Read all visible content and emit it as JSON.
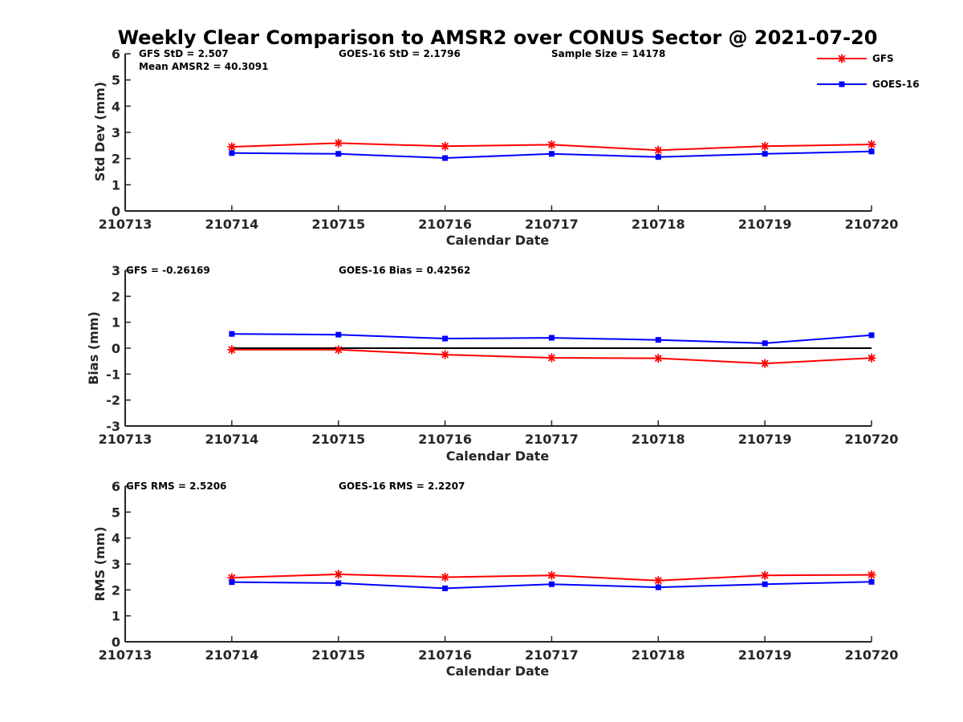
{
  "chart_data": {
    "title": "Weekly Clear Comparison to AMSR2 over CONUS Sector @ 2021-07-20",
    "legend": {
      "placement": "top-right",
      "entries": [
        {
          "name": "GFS",
          "color": "#ff0000",
          "marker": "asterisk"
        },
        {
          "name": "GOES-16",
          "color": "#0000ff",
          "marker": "square"
        }
      ]
    },
    "panels": [
      {
        "type": "line",
        "xlabel": "Calendar Date",
        "ylabel": "Std Dev (mm)",
        "ylim": [
          0,
          6
        ],
        "yticks": [
          0,
          1,
          2,
          3,
          4,
          5,
          6
        ],
        "categories": [
          "210713",
          "210714",
          "210715",
          "210716",
          "210717",
          "210718",
          "210719",
          "210720"
        ],
        "grid": false,
        "zero_line": false,
        "annotations": [
          "GFS StD = 2.507",
          "Mean AMSR2 = 40.3091",
          "GOES-16 StD = 2.1796",
          "Sample Size = 14178"
        ],
        "series": [
          {
            "name": "GFS",
            "color": "#ff0000",
            "marker": "asterisk",
            "x": [
              "210714",
              "210715",
              "210716",
              "210717",
              "210718",
              "210719",
              "210720"
            ],
            "values": [
              2.45,
              2.59,
              2.47,
              2.53,
              2.32,
              2.47,
              2.54
            ]
          },
          {
            "name": "GOES-16",
            "color": "#0000ff",
            "marker": "square",
            "x": [
              "210714",
              "210715",
              "210716",
              "210717",
              "210718",
              "210719",
              "210720"
            ],
            "values": [
              2.21,
              2.18,
              2.02,
              2.18,
              2.06,
              2.18,
              2.27
            ]
          }
        ]
      },
      {
        "type": "line",
        "xlabel": "Calendar Date",
        "ylabel": "Bias (mm)",
        "ylim": [
          -3,
          3
        ],
        "yticks": [
          -3,
          -2,
          -1,
          0,
          1,
          2,
          3
        ],
        "categories": [
          "210713",
          "210714",
          "210715",
          "210716",
          "210717",
          "210718",
          "210719",
          "210720"
        ],
        "grid": false,
        "zero_line": true,
        "annotations": [
          "GFS = -0.26169",
          "GOES-16 Bias  = 0.42562"
        ],
        "series": [
          {
            "name": "GFS",
            "color": "#ff0000",
            "marker": "asterisk",
            "x": [
              "210714",
              "210715",
              "210716",
              "210717",
              "210718",
              "210719",
              "210720"
            ],
            "values": [
              -0.06,
              -0.06,
              -0.25,
              -0.37,
              -0.39,
              -0.59,
              -0.38
            ]
          },
          {
            "name": "GOES-16",
            "color": "#0000ff",
            "marker": "square",
            "x": [
              "210714",
              "210715",
              "210716",
              "210717",
              "210718",
              "210719",
              "210720"
            ],
            "values": [
              0.55,
              0.52,
              0.37,
              0.4,
              0.32,
              0.19,
              0.5
            ]
          }
        ]
      },
      {
        "type": "line",
        "xlabel": "Calendar Date",
        "ylabel": "RMS (mm)",
        "ylim": [
          0,
          6
        ],
        "yticks": [
          0,
          1,
          2,
          3,
          4,
          5,
          6
        ],
        "categories": [
          "210713",
          "210714",
          "210715",
          "210716",
          "210717",
          "210718",
          "210719",
          "210720"
        ],
        "grid": false,
        "zero_line": false,
        "annotations": [
          "GFS RMS = 2.5206",
          "GOES-16 RMS = 2.2207"
        ],
        "series": [
          {
            "name": "GFS",
            "color": "#ff0000",
            "marker": "asterisk",
            "x": [
              "210714",
              "210715",
              "210716",
              "210717",
              "210718",
              "210719",
              "210720"
            ],
            "values": [
              2.47,
              2.6,
              2.49,
              2.56,
              2.36,
              2.56,
              2.58
            ]
          },
          {
            "name": "GOES-16",
            "color": "#0000ff",
            "marker": "square",
            "x": [
              "210714",
              "210715",
              "210716",
              "210717",
              "210718",
              "210719",
              "210720"
            ],
            "values": [
              2.3,
              2.26,
              2.06,
              2.22,
              2.1,
              2.22,
              2.31
            ]
          }
        ]
      }
    ]
  }
}
